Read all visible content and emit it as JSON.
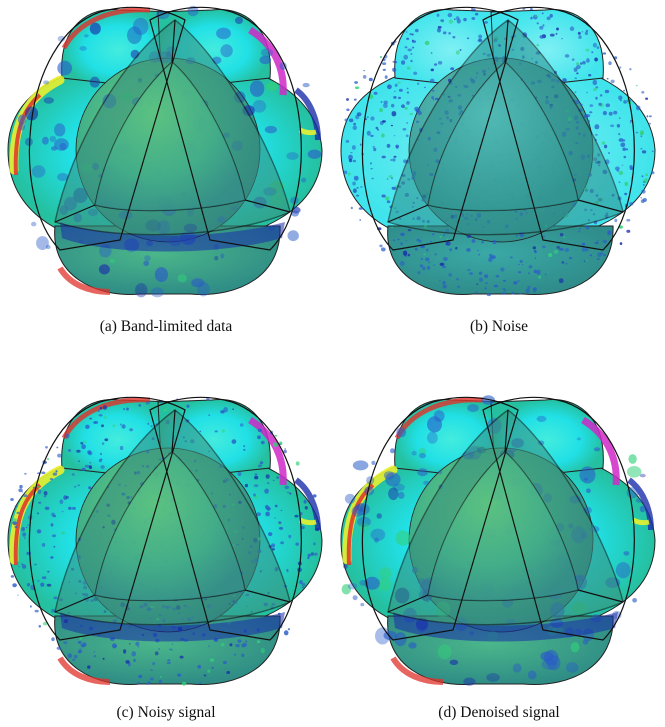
{
  "figures": [
    {
      "label": "(a)",
      "caption": "Band-limited data",
      "style": "signal"
    },
    {
      "label": "(b)",
      "caption": "Noise",
      "style": "noise"
    },
    {
      "label": "(c)",
      "caption": "Noisy signal",
      "style": "noisy"
    },
    {
      "label": "(d)",
      "caption": "Denoised signal",
      "style": "denoised"
    }
  ],
  "colors": {
    "cyan": "#1ee6ee",
    "dark_teal": "#3f9a97",
    "green": "#33d07a",
    "blue": "#2a5cc8",
    "deep_blue": "#1a2eaa",
    "yellow": "#e8f030",
    "red": "#e0322a",
    "magenta": "#d028c8"
  }
}
